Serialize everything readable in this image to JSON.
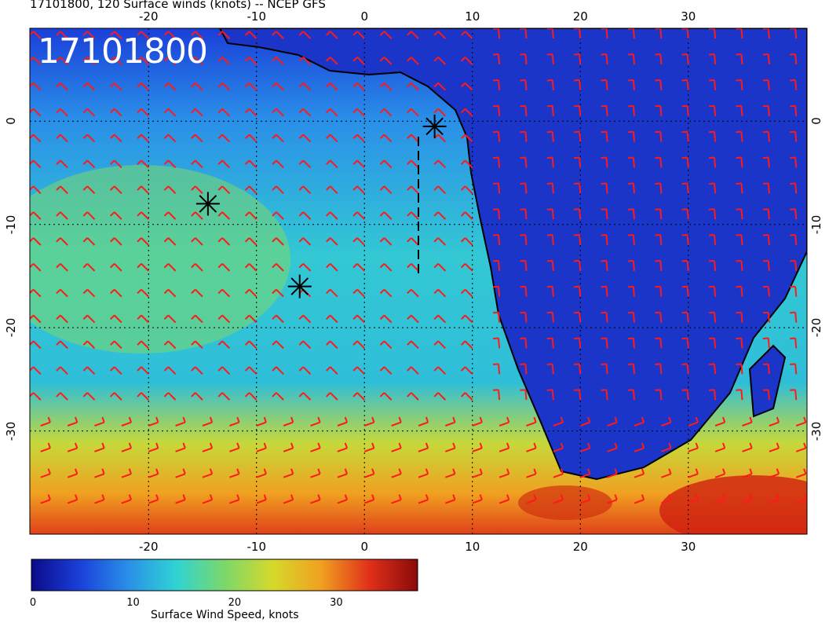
{
  "title": "17101800, 120 Surface winds (knots) -- NCEP GFS",
  "stamp": "17101800",
  "lon_ticks": [
    "-20",
    "-10",
    "0",
    "10",
    "20",
    "30"
  ],
  "lat_ticks": [
    "0",
    "-10",
    "-20",
    "-30"
  ],
  "colorbar": {
    "title": "Surface Wind Speed, knots",
    "ticks": [
      "0",
      "10",
      "20",
      "30"
    ],
    "range": [
      0,
      38
    ],
    "colors": [
      "#0b0b8a",
      "#1a3fd9",
      "#2a8fe8",
      "#2fd3d3",
      "#7bd86a",
      "#d6d92b",
      "#f0a020",
      "#e0301a",
      "#8a0a0a"
    ]
  },
  "map": {
    "lon_range": [
      -31,
      41
    ],
    "lat_range": [
      -40,
      9
    ],
    "storm_markers": [
      {
        "lon": 6.5,
        "lat": -0.5
      },
      {
        "lon": -14.5,
        "lat": -8
      },
      {
        "lon": -6,
        "lat": -16
      }
    ],
    "track_lon": 5,
    "track_lat_range": [
      -15,
      -1.5
    ],
    "barb_color": "#ff1a1a",
    "land_color": "#1530c8",
    "ocean_color": "#2bb8d8"
  }
}
